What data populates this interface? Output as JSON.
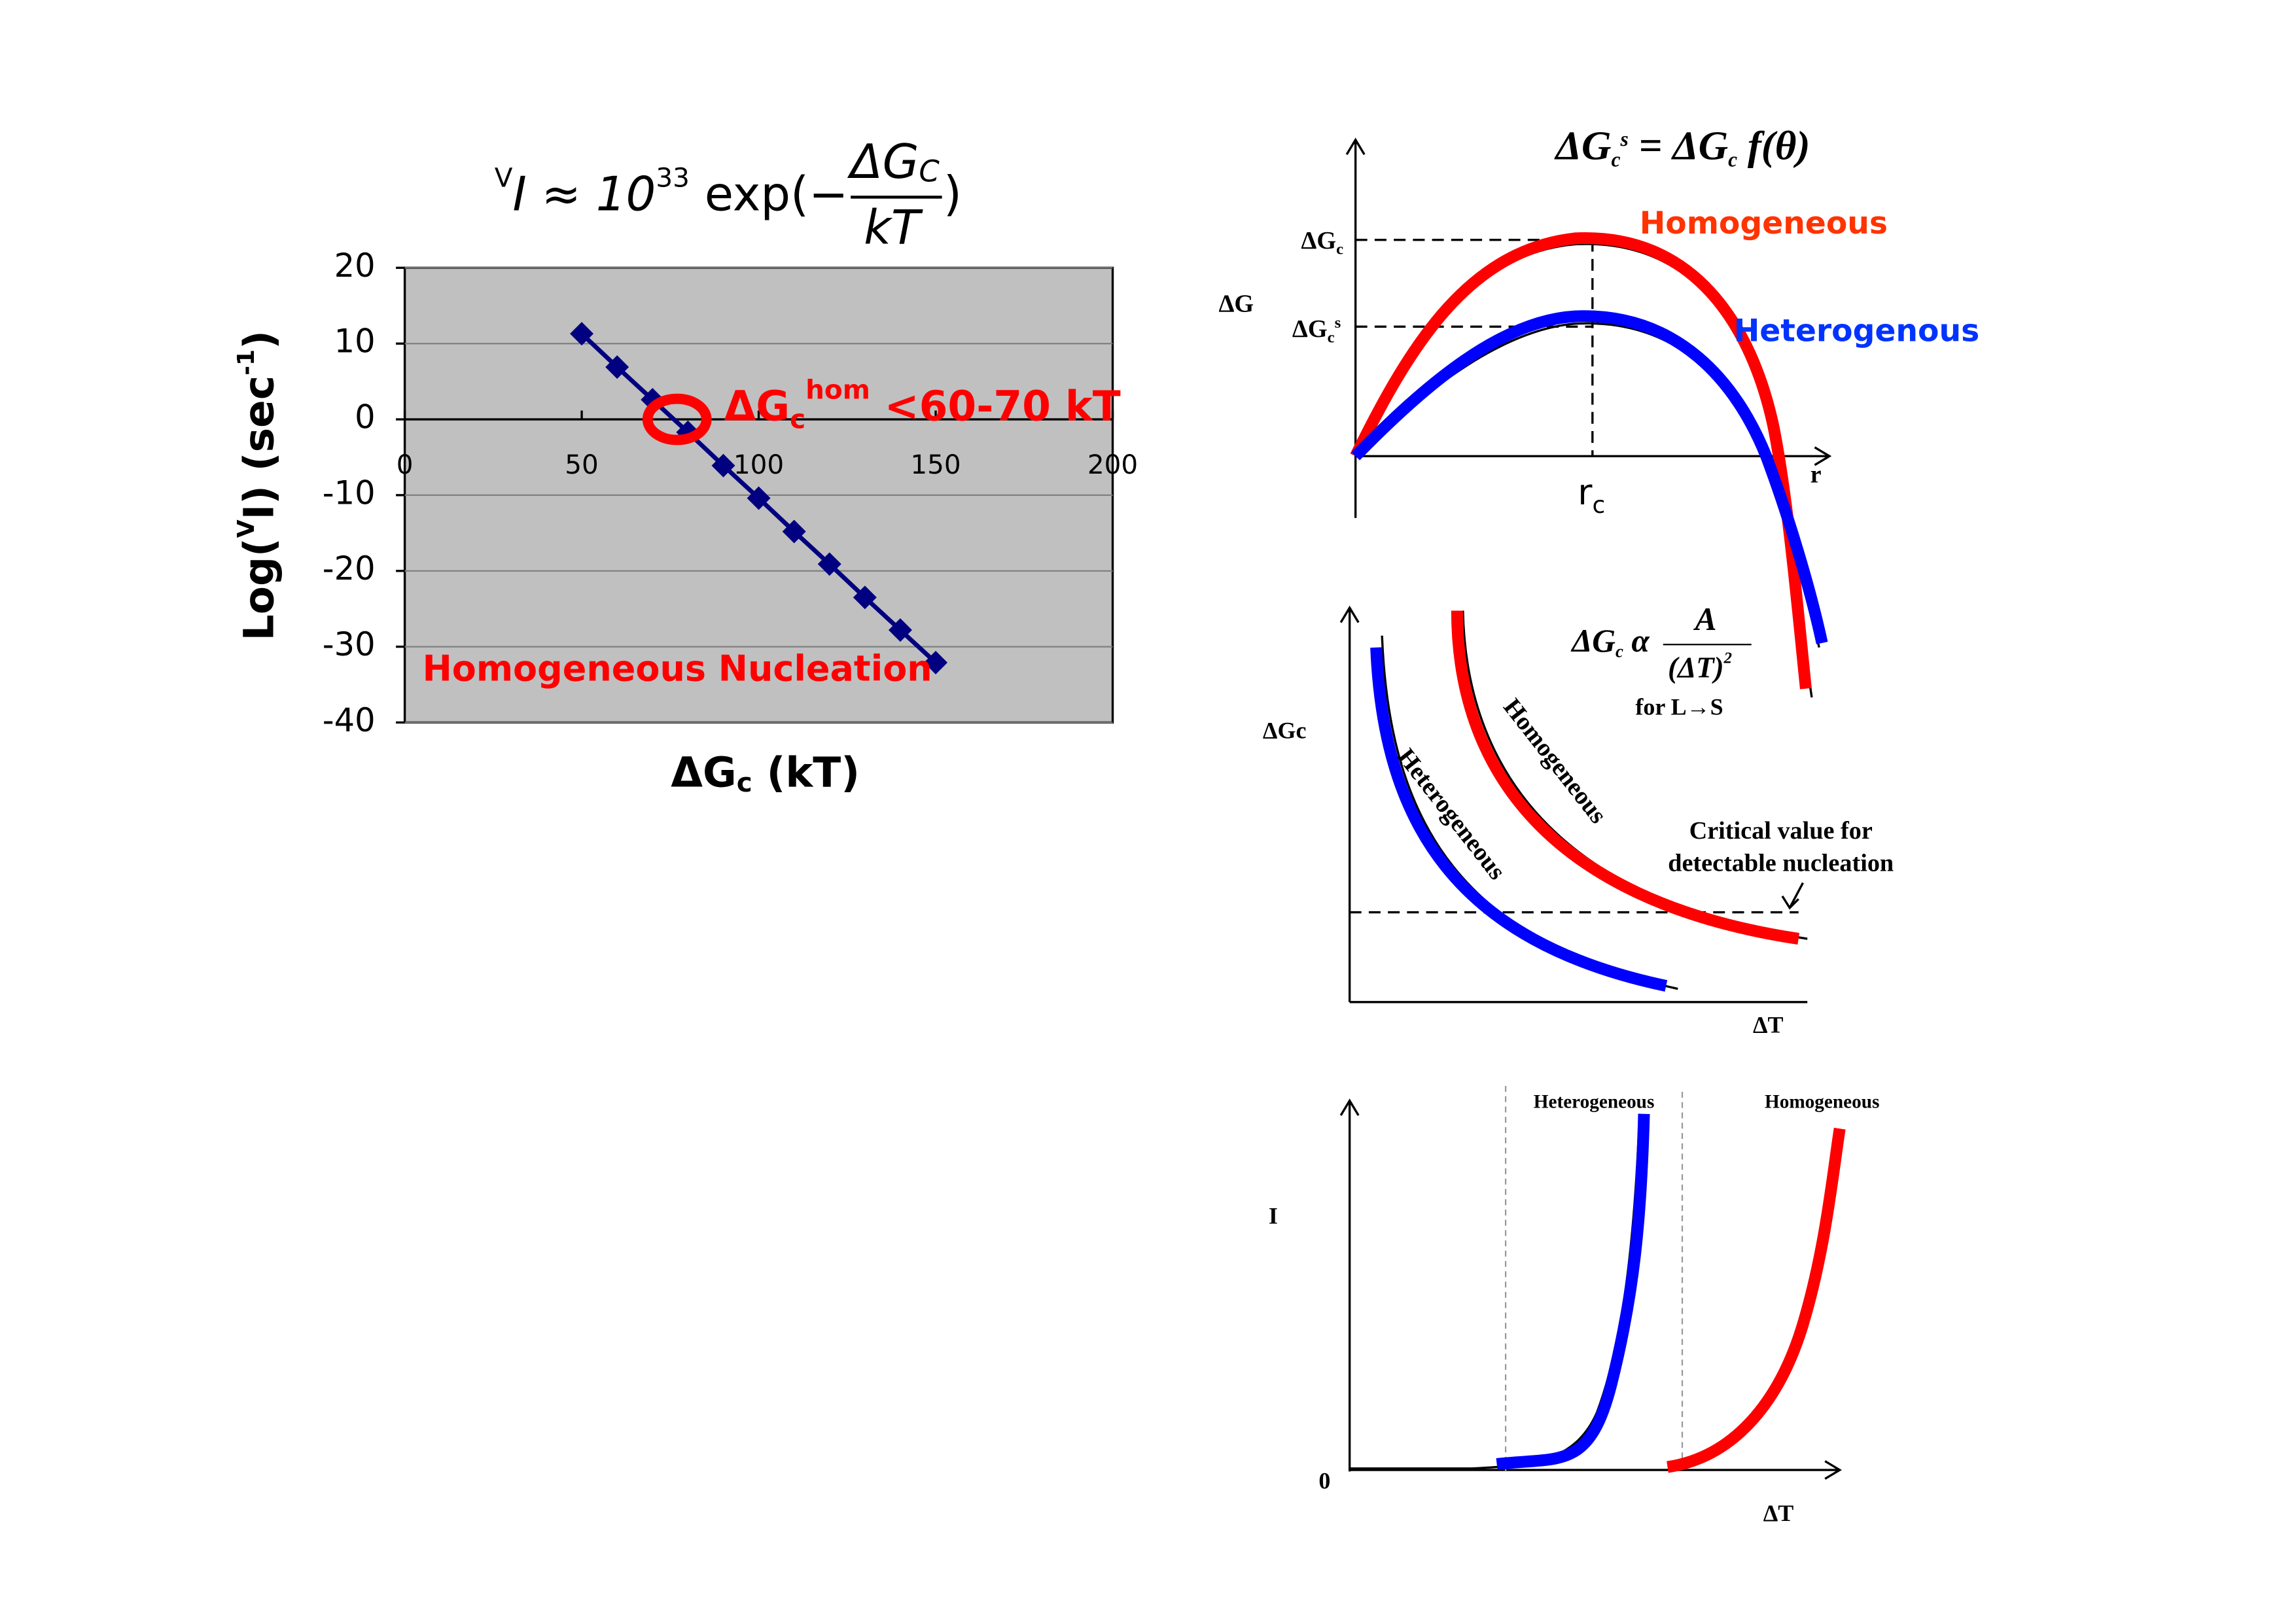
{
  "chart_data": {
    "type": "line",
    "title": {
      "prefix": [
        "V",
        "I ≈ 10",
        "33",
        " exp(−"
      ],
      "numerator": [
        "ΔG",
        "C"
      ],
      "denominator": "kT",
      "suffix": ")"
    },
    "xlabel": [
      "ΔG",
      "c",
      " (kT)"
    ],
    "ylabel": [
      "Log(",
      "V",
      "I) (sec",
      "-1",
      ")"
    ],
    "x": [
      50,
      60,
      70,
      80,
      90,
      100,
      110,
      120,
      130,
      140,
      150
    ],
    "series": [
      {
        "color": "#000080",
        "values": [
          11.3,
          6.9,
          2.6,
          -1.7,
          -6.1,
          -10.4,
          -14.8,
          -19.1,
          -23.5,
          -27.8,
          -32.1
        ]
      }
    ],
    "xlim": [
      0,
      200
    ],
    "xticks": [
      0,
      50,
      100,
      150,
      200
    ],
    "ylim": [
      -40,
      20
    ],
    "yticks": [
      -40,
      -30,
      -20,
      -10,
      0,
      10,
      20
    ],
    "grid": true,
    "plot_color": "#c0c0c0",
    "annotations": {
      "limit": [
        "ΔG",
        "c",
        "hom",
        " <60-70 kT"
      ],
      "label": "Homogeneous Nucleation"
    }
  },
  "diagrams": [
    {
      "formula": [
        "ΔG",
        "c",
        "s",
        " = ΔG",
        "c",
        " f(θ)"
      ],
      "ylabel": "ΔG",
      "xlabel": "r",
      "level1": [
        "ΔG",
        "c"
      ],
      "level2": [
        "ΔG",
        "c",
        "s"
      ],
      "xmark": [
        "r",
        "c"
      ],
      "curve1": "Homogeneous",
      "curve2": "Heterogenous"
    },
    {
      "formula": [
        "ΔG",
        "c",
        " α "
      ],
      "numerator": "A",
      "denominator": [
        "(ΔT)",
        "2"
      ],
      "note": "for L→S",
      "ylabel": "ΔGc",
      "xlabel": "ΔT",
      "curve1": "Heterogeneous",
      "curve2": "Homogeneous",
      "threshold": [
        "Critical value for",
        "detectable nucleation"
      ]
    },
    {
      "ylabel": "I",
      "origin": "0",
      "xlabel": "ΔT",
      "curve1": "Heterogeneous",
      "curve2": "Homogeneous"
    }
  ]
}
